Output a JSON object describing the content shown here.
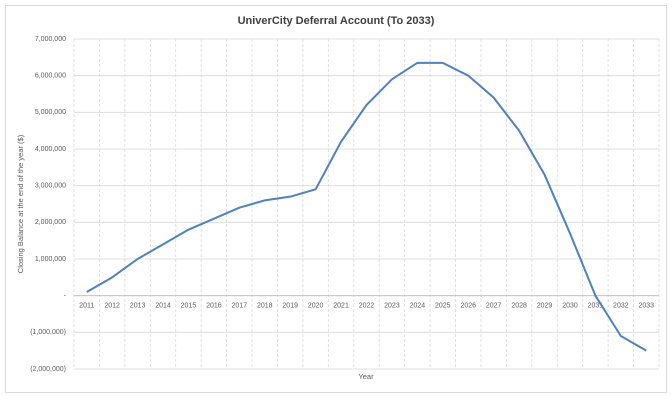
{
  "chart_data": {
    "type": "line",
    "title": "UniverCity Deferral Account (To 2033)",
    "x_label": "Year",
    "y_label": "Closing Balance at the end of the year ($)",
    "categories": [
      "2011",
      "2012",
      "2013",
      "2014",
      "2015",
      "2016",
      "2017",
      "2018",
      "2019",
      "2020",
      "2021",
      "2022",
      "2023",
      "2024",
      "2025",
      "2026",
      "2027",
      "2028",
      "2029",
      "2030",
      "2031",
      "2032",
      "2033"
    ],
    "series": [
      {
        "name": "Closing Balance",
        "color": "#4f81bd",
        "values": [
          100000,
          500000,
          1000000,
          1400000,
          1800000,
          2100000,
          2400000,
          2600000,
          2700000,
          2900000,
          4200000,
          5200000,
          5900000,
          6350000,
          6350000,
          6000000,
          5400000,
          4500000,
          3300000,
          1700000,
          0,
          -1100000,
          -1500000
        ]
      }
    ],
    "ylim": [
      -2000000,
      7000000
    ],
    "yticks": [
      {
        "value": -2000000,
        "label": "(2,000,000)"
      },
      {
        "value": -1000000,
        "label": "(1,000,000)"
      },
      {
        "value": 0,
        "label": "-"
      },
      {
        "value": 1000000,
        "label": "1,000,000"
      },
      {
        "value": 2000000,
        "label": "2,000,000"
      },
      {
        "value": 3000000,
        "label": "3,000,000"
      },
      {
        "value": 4000000,
        "label": "4,000,000"
      },
      {
        "value": 5000000,
        "label": "5,000,000"
      },
      {
        "value": 6000000,
        "label": "6,000,000"
      },
      {
        "value": 7000000,
        "label": "7,000,000"
      }
    ],
    "grid": true
  }
}
